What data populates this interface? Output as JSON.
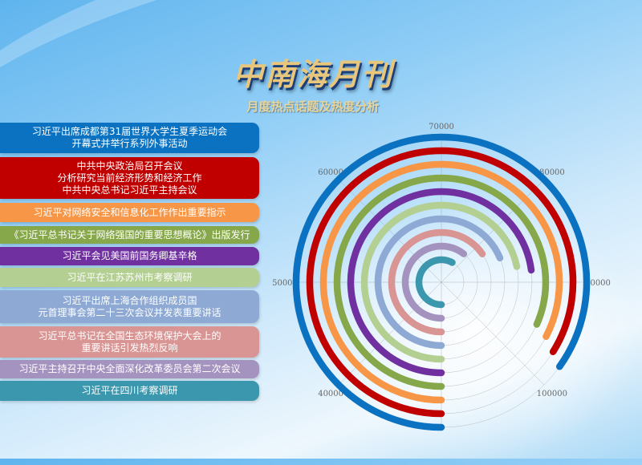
{
  "header": {
    "title": "中南海月刊",
    "subtitle": "月度热点话题及热度分析"
  },
  "chart_data": {
    "type": "radial-bar",
    "angular_axis": {
      "min": 30000,
      "max": 110000,
      "ticks": [
        40000,
        50000,
        60000,
        70000,
        80000,
        90000,
        100000
      ],
      "direction": "clockwise",
      "start": "bottom"
    },
    "grid": true,
    "categories": [
      "习近平出席成都第31届世界大学生夏季运动会\n开幕式并举行系列外事活动",
      "中共中央政治局召开会议\n分析研究当前经济形势和经济工作\n中共中央总书记习近平主持会议",
      "习近平对网络安全和信息化工作作出重要指示",
      "《习近平总书记关于网络强国的重要思想概论》出版发行",
      "习近平会见美国前国务卿基辛格",
      "习近平在江苏苏州市考察调研",
      "习近平出席上海合作组织成员国\n元首理事会第二十三次会议并发表重要讲话",
      "习近平总书记在全国生态环境保护大会上的\n重要讲话引发热烈反响",
      "习近平主持召开中央全面深化改革委员会第二次会议",
      "习近平在四川考察调研"
    ],
    "values": [
      97900,
      97100,
      96100,
      95300,
      88300,
      87400,
      85000,
      82300,
      78500,
      76400
    ],
    "colors": [
      "#0a72c0",
      "#c00000",
      "#f79646",
      "#86a84a",
      "#7030a0",
      "#b3cf92",
      "#8ea9d3",
      "#d99594",
      "#a493bf",
      "#3b97ad"
    ]
  }
}
